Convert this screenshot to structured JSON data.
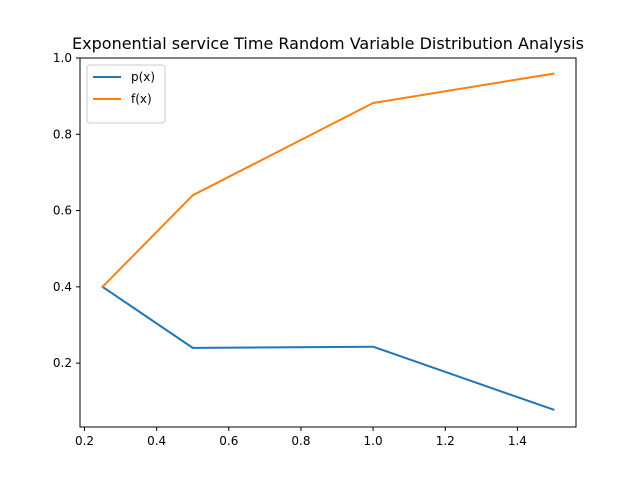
{
  "chart_data": {
    "type": "line",
    "title": "Exponential service Time Random Variable Distribution Analysis",
    "xlabel": "",
    "ylabel": "",
    "xlim": [
      0.1875,
      1.5625
    ],
    "ylim": [
      0.0325,
      1.0
    ],
    "xticks": [
      0.2,
      0.4,
      0.6,
      0.8,
      1.0,
      1.2,
      1.4
    ],
    "xtick_labels": [
      "0.2",
      "0.4",
      "0.6",
      "0.8",
      "1.0",
      "1.2",
      "1.4"
    ],
    "yticks": [
      0.2,
      0.4,
      0.6,
      0.8,
      1.0
    ],
    "ytick_labels": [
      "0.2",
      "0.4",
      "0.6",
      "0.8",
      "1.0"
    ],
    "grid": false,
    "legend_position": "upper-left",
    "x": [
      0.25,
      0.5,
      1.0,
      1.5
    ],
    "series": [
      {
        "name": "p(x)",
        "color": "#1f77b4",
        "values": [
          0.4,
          0.24,
          0.243,
          0.078
        ]
      },
      {
        "name": "f(x)",
        "color": "#ff7f0e",
        "values": [
          0.4,
          0.64,
          0.882,
          0.959
        ]
      }
    ]
  }
}
